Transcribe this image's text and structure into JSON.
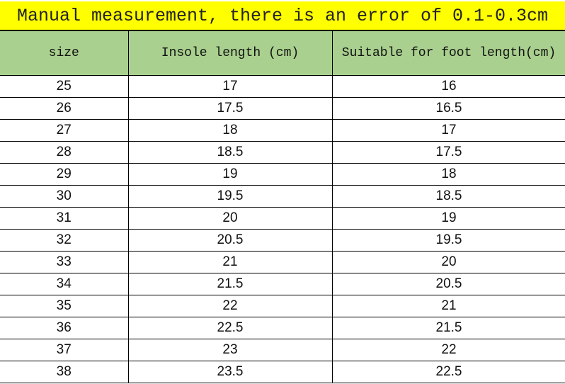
{
  "title": "Manual measurement, there is an error of 0.1-0.3cm",
  "colors": {
    "title_bg": "#FFFF00",
    "header_bg": "#A9D08E"
  },
  "headers": [
    "size",
    "Insole length (cm)",
    "Suitable for foot length(cm)"
  ],
  "rows": [
    [
      "25",
      "17",
      "16"
    ],
    [
      "26",
      "17.5",
      "16.5"
    ],
    [
      "27",
      "18",
      "17"
    ],
    [
      "28",
      "18.5",
      "17.5"
    ],
    [
      "29",
      "19",
      "18"
    ],
    [
      "30",
      "19.5",
      "18.5"
    ],
    [
      "31",
      "20",
      "19"
    ],
    [
      "32",
      "20.5",
      "19.5"
    ],
    [
      "33",
      "21",
      "20"
    ],
    [
      "34",
      "21.5",
      "20.5"
    ],
    [
      "35",
      "22",
      "21"
    ],
    [
      "36",
      "22.5",
      "21.5"
    ],
    [
      "37",
      "23",
      "22"
    ],
    [
      "38",
      "23.5",
      "22.5"
    ]
  ]
}
